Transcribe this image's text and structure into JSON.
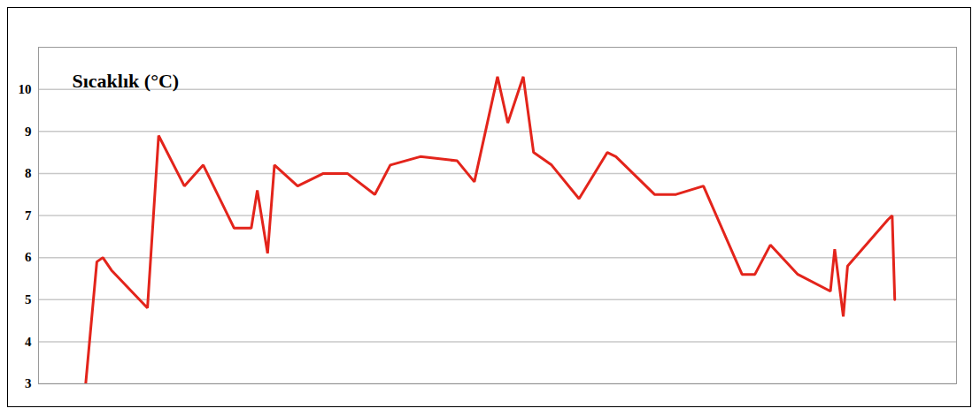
{
  "chart_data": {
    "type": "line",
    "title": "Sıcaklık (°C)",
    "x": [
      55,
      68,
      75,
      85,
      127,
      140,
      170,
      192,
      228,
      248,
      255,
      267,
      275,
      302,
      332,
      360,
      392,
      410,
      445,
      488,
      508,
      535,
      547,
      565,
      577,
      598,
      630,
      663,
      673,
      718,
      743,
      775,
      820,
      835,
      853,
      885,
      923,
      928,
      938,
      943,
      990,
      995,
      998
    ],
    "values": [
      3.0,
      5.9,
      6.0,
      5.7,
      4.8,
      8.9,
      7.7,
      8.2,
      6.7,
      6.7,
      7.6,
      6.1,
      8.2,
      7.7,
      8.0,
      8.0,
      7.5,
      8.2,
      8.4,
      8.3,
      7.8,
      10.3,
      9.2,
      10.3,
      8.5,
      8.2,
      7.4,
      8.5,
      8.4,
      7.5,
      7.5,
      7.7,
      5.6,
      5.6,
      6.3,
      5.6,
      5.2,
      6.2,
      4.6,
      5.8,
      6.9,
      7.0,
      5.0
    ],
    "color": "#e3241b",
    "xlim": [
      0,
      1070
    ],
    "ylim": [
      3,
      11
    ],
    "yticks": [
      3,
      4,
      5,
      6,
      7,
      8,
      9,
      10
    ],
    "grid": true,
    "tick_labels": "y"
  }
}
